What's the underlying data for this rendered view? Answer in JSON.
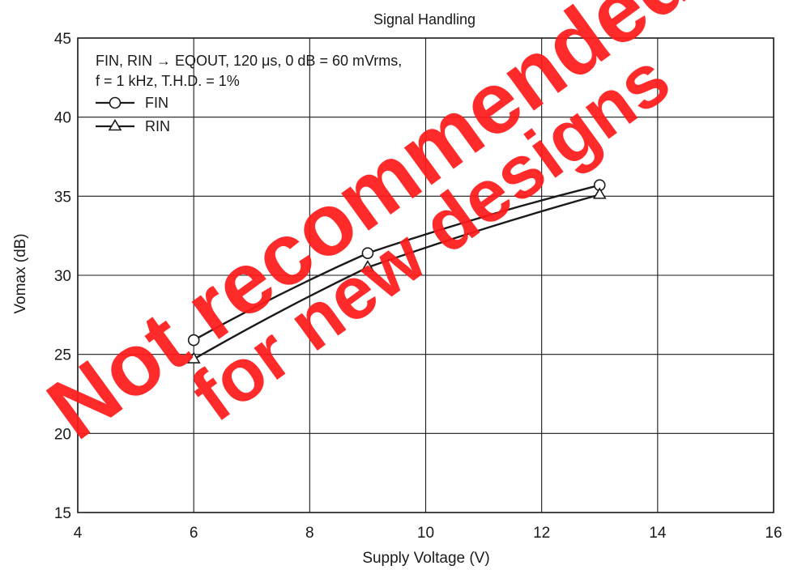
{
  "chart_data": {
    "type": "line",
    "title": "Signal Handling",
    "xlabel": "Supply Voltage  (V)",
    "ylabel": "Vomax  (dB)",
    "xlim": [
      4,
      16
    ],
    "ylim": [
      15,
      45
    ],
    "xticks": [
      4,
      6,
      8,
      10,
      12,
      14,
      16
    ],
    "yticks": [
      15,
      20,
      25,
      30,
      35,
      40,
      45
    ],
    "grid": true,
    "legend_position": "top-left",
    "note_lines": [
      "FIN, RIN → EQOUT, 120 μs, 0 dB = 60 mVrms,",
      "f = 1 kHz, T.H.D. = 1%"
    ],
    "series": [
      {
        "name": "FIN",
        "marker": "circle",
        "x": [
          6,
          9,
          13
        ],
        "y": [
          25.9,
          31.4,
          35.7
        ]
      },
      {
        "name": "RIN",
        "marker": "triangle",
        "x": [
          6,
          9,
          13
        ],
        "y": [
          24.7,
          30.5,
          35.1
        ]
      }
    ]
  },
  "watermark": {
    "line1": "Not recommended",
    "line2": "for new designs",
    "color": "#ff1a1a"
  }
}
